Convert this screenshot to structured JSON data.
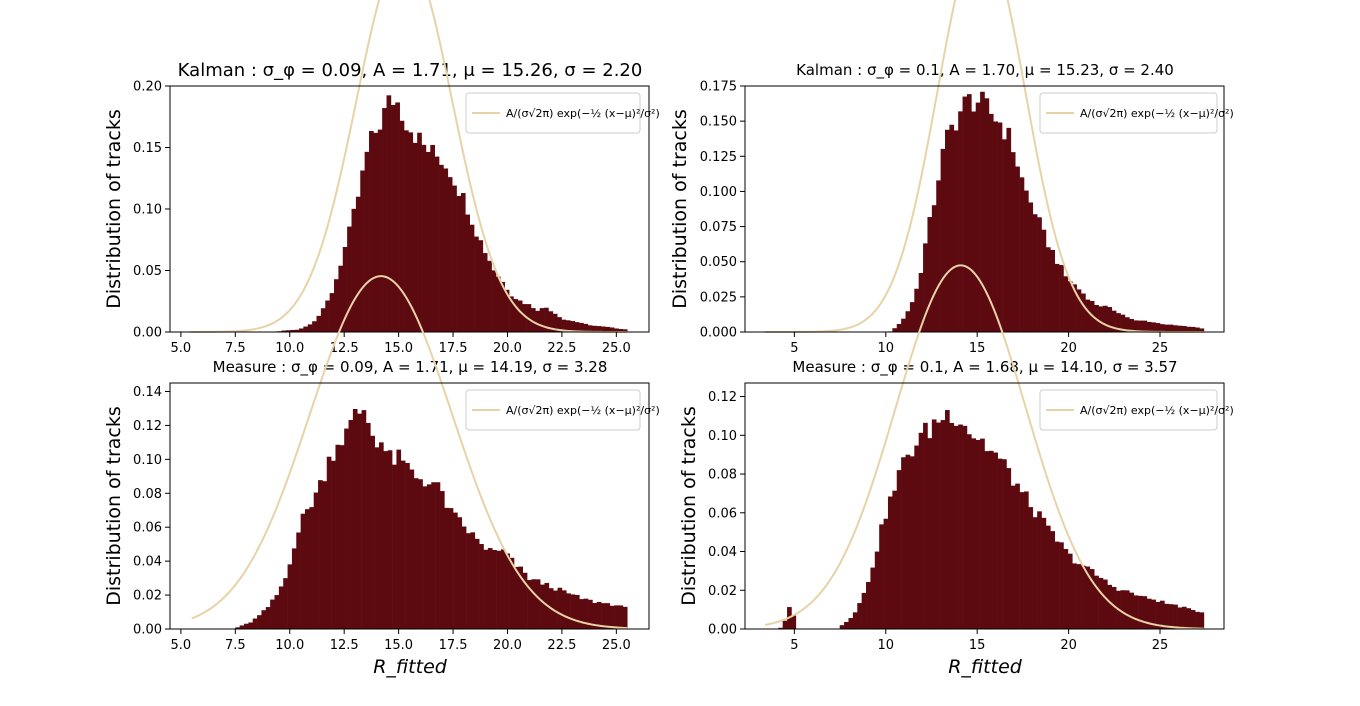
{
  "colors": {
    "bar": "#5c0a0f",
    "fit": "#e8d2a8",
    "axis": "#000000",
    "legend_edge": "#cccccc"
  },
  "charts": [
    {
      "id": "kalman_09",
      "title": "Kalman : σ_φ = 0.09, A = 1.71, μ = 15.26, σ = 2.20",
      "ylabel": "Distribution of tracks",
      "xlabel": "",
      "legend": "A/(σ√2π) exp(−½ (x−μ)²/σ²)",
      "xticks": [
        "5.0",
        "7.5",
        "10.0",
        "12.5",
        "15.0",
        "17.5",
        "20.0",
        "22.5",
        "25.0"
      ],
      "yticks": [
        "0.00",
        "0.05",
        "0.10",
        "0.15",
        "0.20"
      ]
    },
    {
      "id": "kalman_1",
      "title": "Kalman : σ_φ = 0.1, A = 1.70, μ = 15.23, σ = 2.40",
      "ylabel": "Distribution of tracks",
      "xlabel": "",
      "legend": "A/(σ√2π) exp(−½ (x−μ)²/σ²)",
      "xticks": [
        "5",
        "10",
        "15",
        "20",
        "25"
      ],
      "yticks": [
        "0.000",
        "0.025",
        "0.050",
        "0.075",
        "0.100",
        "0.125",
        "0.150",
        "0.175"
      ]
    },
    {
      "id": "measure_09",
      "title": "Measure : σ_φ = 0.09, A = 1.71, μ = 14.19, σ = 3.28",
      "ylabel": "Distribution of tracks",
      "xlabel": "R_fitted",
      "legend": "A/(σ√2π) exp(−½ (x−μ)²/σ²)",
      "xticks": [
        "5.0",
        "7.5",
        "10.0",
        "12.5",
        "15.0",
        "17.5",
        "20.0",
        "22.5",
        "25.0"
      ],
      "yticks": [
        "0.00",
        "0.02",
        "0.04",
        "0.06",
        "0.08",
        "0.10",
        "0.12",
        "0.14"
      ]
    },
    {
      "id": "measure_1",
      "title": "Measure : σ_φ = 0.1, A = 1.68, μ = 14.10, σ = 3.57",
      "ylabel": "Distribution of tracks",
      "xlabel": "R_fitted",
      "legend": "A/(σ√2π) exp(−½ (x−μ)²/σ²)",
      "xticks": [
        "5",
        "10",
        "15",
        "20",
        "25"
      ],
      "yticks": [
        "0.00",
        "0.02",
        "0.04",
        "0.06",
        "0.08",
        "0.10",
        "0.12"
      ]
    }
  ],
  "chart_data": [
    {
      "type": "bar",
      "title": "Kalman : σ_φ = 0.09, A = 1.71, μ = 15.26, σ = 2.20",
      "ylabel": "Distribution of tracks",
      "xlim": [
        4.5,
        26.5
      ],
      "ylim": [
        0,
        0.2
      ],
      "fit": {
        "A": 1.71,
        "mu": 15.26,
        "sigma": 2.2,
        "x_range": [
          5.4,
          25.5
        ]
      },
      "histogram_profile": [
        [
          5.4,
          0
        ],
        [
          9.4,
          0
        ],
        [
          9.6,
          0.001
        ],
        [
          10.4,
          0.002
        ],
        [
          10.8,
          0.005
        ],
        [
          11.2,
          0.01
        ],
        [
          11.6,
          0.02
        ],
        [
          12.0,
          0.035
        ],
        [
          12.4,
          0.06
        ],
        [
          12.8,
          0.085
        ],
        [
          13.2,
          0.115
        ],
        [
          13.6,
          0.15
        ],
        [
          14.0,
          0.165
        ],
        [
          14.4,
          0.18
        ],
        [
          14.6,
          0.188
        ],
        [
          14.8,
          0.19
        ],
        [
          15.0,
          0.185
        ],
        [
          15.4,
          0.17
        ],
        [
          15.8,
          0.16
        ],
        [
          16.2,
          0.15
        ],
        [
          16.6,
          0.145
        ],
        [
          17.0,
          0.14
        ],
        [
          17.4,
          0.13
        ],
        [
          17.8,
          0.115
        ],
        [
          18.2,
          0.1
        ],
        [
          18.6,
          0.08
        ],
        [
          19.0,
          0.065
        ],
        [
          19.4,
          0.05
        ],
        [
          19.8,
          0.04
        ],
        [
          20.2,
          0.03
        ],
        [
          20.6,
          0.025
        ],
        [
          21.0,
          0.022
        ],
        [
          21.4,
          0.018
        ],
        [
          21.8,
          0.02
        ],
        [
          22.2,
          0.015
        ],
        [
          22.6,
          0.01
        ],
        [
          23.0,
          0.009
        ],
        [
          23.4,
          0.007
        ],
        [
          24.0,
          0.005
        ],
        [
          24.6,
          0.004
        ],
        [
          25.0,
          0.003
        ],
        [
          25.5,
          0.002
        ]
      ]
    },
    {
      "type": "bar",
      "title": "Kalman : σ_φ = 0.1, A = 1.70, μ = 15.23, σ = 2.40",
      "ylabel": "Distribution of tracks",
      "xlim": [
        2.3,
        28.5
      ],
      "ylim": [
        0,
        0.175
      ],
      "fit": {
        "A": 1.7,
        "mu": 15.23,
        "sigma": 2.4,
        "x_range": [
          3.4,
          27.4
        ]
      },
      "histogram_profile": [
        [
          3.4,
          0
        ],
        [
          10.2,
          0
        ],
        [
          10.6,
          0.004
        ],
        [
          11.0,
          0.01
        ],
        [
          11.4,
          0.02
        ],
        [
          11.8,
          0.035
        ],
        [
          12.2,
          0.065
        ],
        [
          12.6,
          0.09
        ],
        [
          13.0,
          0.12
        ],
        [
          13.4,
          0.14
        ],
        [
          13.8,
          0.15
        ],
        [
          14.2,
          0.16
        ],
        [
          14.6,
          0.165
        ],
        [
          15.0,
          0.165
        ],
        [
          15.4,
          0.16
        ],
        [
          15.8,
          0.155
        ],
        [
          16.2,
          0.15
        ],
        [
          16.6,
          0.142
        ],
        [
          17.0,
          0.13
        ],
        [
          17.4,
          0.11
        ],
        [
          17.8,
          0.095
        ],
        [
          18.2,
          0.085
        ],
        [
          18.6,
          0.07
        ],
        [
          19.0,
          0.06
        ],
        [
          19.4,
          0.05
        ],
        [
          19.8,
          0.04
        ],
        [
          20.2,
          0.035
        ],
        [
          20.6,
          0.03
        ],
        [
          21.0,
          0.025
        ],
        [
          21.4,
          0.02
        ],
        [
          22.0,
          0.018
        ],
        [
          22.6,
          0.015
        ],
        [
          23.0,
          0.012
        ],
        [
          23.6,
          0.008
        ],
        [
          24.2,
          0.008
        ],
        [
          25.0,
          0.006
        ],
        [
          25.6,
          0.005
        ],
        [
          26.4,
          0.004
        ],
        [
          27.2,
          0.003
        ],
        [
          27.4,
          0.002
        ]
      ]
    },
    {
      "type": "bar",
      "title": "Measure : σ_φ = 0.09, A = 1.71, μ = 14.19, σ = 3.28",
      "ylabel": "Distribution of tracks",
      "xlabel": "R_fitted",
      "xlim": [
        4.5,
        26.5
      ],
      "ylim": [
        0,
        0.145
      ],
      "fit": {
        "A": 1.71,
        "mu": 14.19,
        "sigma": 3.28,
        "x_range": [
          5.5,
          25.5
        ]
      },
      "histogram_profile": [
        [
          5.5,
          0
        ],
        [
          7.4,
          0
        ],
        [
          7.8,
          0.002
        ],
        [
          8.2,
          0.004
        ],
        [
          8.6,
          0.008
        ],
        [
          9.0,
          0.013
        ],
        [
          9.4,
          0.02
        ],
        [
          9.8,
          0.03
        ],
        [
          10.2,
          0.05
        ],
        [
          10.6,
          0.065
        ],
        [
          11.0,
          0.075
        ],
        [
          11.4,
          0.085
        ],
        [
          11.8,
          0.1
        ],
        [
          12.2,
          0.11
        ],
        [
          12.6,
          0.115
        ],
        [
          13.0,
          0.125
        ],
        [
          13.4,
          0.13
        ],
        [
          13.8,
          0.115
        ],
        [
          14.2,
          0.11
        ],
        [
          14.6,
          0.1
        ],
        [
          15.0,
          0.1
        ],
        [
          15.4,
          0.095
        ],
        [
          15.8,
          0.09
        ],
        [
          16.2,
          0.088
        ],
        [
          16.6,
          0.085
        ],
        [
          17.0,
          0.08
        ],
        [
          17.4,
          0.068
        ],
        [
          17.8,
          0.063
        ],
        [
          18.2,
          0.058
        ],
        [
          18.6,
          0.052
        ],
        [
          19.0,
          0.048
        ],
        [
          19.4,
          0.045
        ],
        [
          19.8,
          0.046
        ],
        [
          20.2,
          0.04
        ],
        [
          20.6,
          0.035
        ],
        [
          21.0,
          0.03
        ],
        [
          21.4,
          0.028
        ],
        [
          21.8,
          0.026
        ],
        [
          22.2,
          0.024
        ],
        [
          22.6,
          0.022
        ],
        [
          23.0,
          0.02
        ],
        [
          23.4,
          0.018
        ],
        [
          24.0,
          0.016
        ],
        [
          24.6,
          0.015
        ],
        [
          25.0,
          0.014
        ],
        [
          25.5,
          0.012
        ]
      ]
    },
    {
      "type": "bar",
      "title": "Measure : σ_φ = 0.1, A = 1.68, μ = 14.10, σ = 3.57",
      "ylabel": "Distribution of tracks",
      "xlabel": "R_fitted",
      "xlim": [
        2.3,
        28.5
      ],
      "ylim": [
        0,
        0.127
      ],
      "fit": {
        "A": 1.68,
        "mu": 14.1,
        "sigma": 3.57,
        "x_range": [
          3.4,
          27.4
        ]
      },
      "histogram_profile": [
        [
          3.4,
          0
        ],
        [
          4.2,
          0
        ],
        [
          4.4,
          0.003
        ],
        [
          4.6,
          0.006
        ],
        [
          4.8,
          0.014
        ],
        [
          5.0,
          0.005
        ],
        [
          5.2,
          0
        ],
        [
          7.4,
          0
        ],
        [
          7.6,
          0.002
        ],
        [
          8.0,
          0.005
        ],
        [
          8.4,
          0.01
        ],
        [
          8.8,
          0.018
        ],
        [
          9.2,
          0.03
        ],
        [
          9.6,
          0.045
        ],
        [
          10.0,
          0.06
        ],
        [
          10.4,
          0.07
        ],
        [
          10.8,
          0.082
        ],
        [
          11.2,
          0.09
        ],
        [
          11.6,
          0.095
        ],
        [
          12.0,
          0.1
        ],
        [
          12.4,
          0.103
        ],
        [
          12.8,
          0.108
        ],
        [
          13.2,
          0.11
        ],
        [
          13.6,
          0.112
        ],
        [
          14.0,
          0.11
        ],
        [
          14.4,
          0.105
        ],
        [
          14.8,
          0.1
        ],
        [
          15.2,
          0.098
        ],
        [
          15.6,
          0.093
        ],
        [
          16.0,
          0.09
        ],
        [
          16.4,
          0.085
        ],
        [
          16.8,
          0.08
        ],
        [
          17.2,
          0.074
        ],
        [
          17.6,
          0.068
        ],
        [
          18.0,
          0.063
        ],
        [
          18.4,
          0.058
        ],
        [
          18.8,
          0.052
        ],
        [
          19.2,
          0.048
        ],
        [
          19.6,
          0.043
        ],
        [
          20.0,
          0.038
        ],
        [
          20.6,
          0.034
        ],
        [
          21.2,
          0.03
        ],
        [
          21.8,
          0.026
        ],
        [
          22.4,
          0.022
        ],
        [
          23.0,
          0.02
        ],
        [
          23.6,
          0.018
        ],
        [
          24.2,
          0.016
        ],
        [
          24.8,
          0.015
        ],
        [
          25.4,
          0.013
        ],
        [
          26.0,
          0.012
        ],
        [
          26.6,
          0.01
        ],
        [
          27.2,
          0.009
        ],
        [
          27.4,
          0.008
        ]
      ]
    }
  ]
}
